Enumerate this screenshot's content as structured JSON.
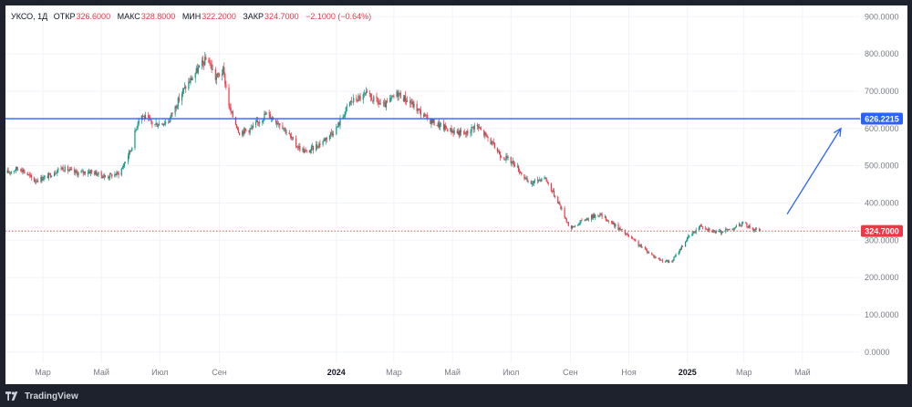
{
  "legend": {
    "symbol": "УКСО, 1Д",
    "open_label": "ОТКР",
    "open_value": "326.6000",
    "high_label": "МАКС",
    "high_value": "328.8000",
    "low_label": "МИН",
    "low_value": "322.2000",
    "close_label": "ЗАКР",
    "close_value": "324.7000",
    "change": "−2.1000 (−0.64%)"
  },
  "footer": {
    "brand": "TradingView",
    "logo_icon": "tradingview-logo-icon"
  },
  "colors": {
    "up": "#089981",
    "down": "#f23645",
    "grid": "#f0f3fa",
    "axis_text": "#787b86",
    "level_line": "#2962ff",
    "price_line": "#f23645"
  },
  "chart_data": {
    "type": "candlestick",
    "y_ticks": [
      "900.0000",
      "800.0000",
      "700.0000",
      "600.0000",
      "500.0000",
      "400.0000",
      "300.0000",
      "200.0000",
      "100.0000",
      "0.0000"
    ],
    "y_range": [
      -30,
      930
    ],
    "x_ticks": [
      {
        "label": "Мар",
        "date": "2023-03-01",
        "bold": false
      },
      {
        "label": "Май",
        "date": "2023-05-01",
        "bold": false
      },
      {
        "label": "Июл",
        "date": "2023-07-01",
        "bold": false
      },
      {
        "label": "Сен",
        "date": "2023-09-01",
        "bold": false
      },
      {
        "label": "2024",
        "date": "2024-01-01",
        "bold": true
      },
      {
        "label": "Мар",
        "date": "2024-03-01",
        "bold": false
      },
      {
        "label": "Май",
        "date": "2024-05-01",
        "bold": false
      },
      {
        "label": "Июл",
        "date": "2024-07-01",
        "bold": false
      },
      {
        "label": "Сен",
        "date": "2024-09-01",
        "bold": false
      },
      {
        "label": "Ноя",
        "date": "2024-11-01",
        "bold": false
      },
      {
        "label": "2025",
        "date": "2025-01-01",
        "bold": true
      },
      {
        "label": "Мар",
        "date": "2025-03-01",
        "bold": false
      },
      {
        "label": "Май",
        "date": "2025-05-01",
        "bold": false
      }
    ],
    "x_range": [
      "2023-01-21",
      "2025-06-30"
    ],
    "grid": true,
    "horizontal_level": {
      "value": 626.2215,
      "label": "626.2215"
    },
    "last_price": {
      "value": 324.7,
      "label": "324.7000"
    },
    "price_path": [
      [
        "2023-01-21",
        480
      ],
      [
        "2023-02-05",
        495
      ],
      [
        "2023-02-20",
        460
      ],
      [
        "2023-03-05",
        470
      ],
      [
        "2023-03-20",
        495
      ],
      [
        "2023-04-05",
        480
      ],
      [
        "2023-04-20",
        485
      ],
      [
        "2023-05-05",
        470
      ],
      [
        "2023-05-20",
        480
      ],
      [
        "2023-06-01",
        545
      ],
      [
        "2023-06-10",
        640
      ],
      [
        "2023-06-25",
        610
      ],
      [
        "2023-07-10",
        620
      ],
      [
        "2023-07-25",
        700
      ],
      [
        "2023-08-10",
        760
      ],
      [
        "2023-08-20",
        790
      ],
      [
        "2023-08-28",
        735
      ],
      [
        "2023-09-05",
        755
      ],
      [
        "2023-09-12",
        650
      ],
      [
        "2023-09-22",
        590
      ],
      [
        "2023-10-05",
        600
      ],
      [
        "2023-10-20",
        640
      ],
      [
        "2023-11-05",
        610
      ],
      [
        "2023-11-20",
        555
      ],
      [
        "2023-12-01",
        535
      ],
      [
        "2023-12-15",
        560
      ],
      [
        "2024-01-01",
        600
      ],
      [
        "2024-01-15",
        670
      ],
      [
        "2024-02-01",
        690
      ],
      [
        "2024-02-20",
        660
      ],
      [
        "2024-03-05",
        695
      ],
      [
        "2024-03-20",
        665
      ],
      [
        "2024-04-05",
        625
      ],
      [
        "2024-04-20",
        605
      ],
      [
        "2024-05-05",
        590
      ],
      [
        "2024-05-15",
        585
      ],
      [
        "2024-05-25",
        610
      ],
      [
        "2024-06-05",
        580
      ],
      [
        "2024-06-20",
        530
      ],
      [
        "2024-07-05",
        505
      ],
      [
        "2024-07-20",
        450
      ],
      [
        "2024-08-05",
        470
      ],
      [
        "2024-08-20",
        400
      ],
      [
        "2024-09-01",
        330
      ],
      [
        "2024-09-15",
        355
      ],
      [
        "2024-10-01",
        370
      ],
      [
        "2024-10-15",
        345
      ],
      [
        "2024-11-01",
        310
      ],
      [
        "2024-11-15",
        280
      ],
      [
        "2024-12-01",
        250
      ],
      [
        "2024-12-15",
        240
      ],
      [
        "2025-01-01",
        305
      ],
      [
        "2025-01-15",
        340
      ],
      [
        "2025-02-01",
        320
      ],
      [
        "2025-02-15",
        330
      ],
      [
        "2025-03-01",
        345
      ],
      [
        "2025-03-10",
        330
      ],
      [
        "2025-03-18",
        324.7
      ]
    ],
    "arrow": {
      "from": [
        "2025-04-15",
        370
      ],
      "to": [
        "2025-06-10",
        600
      ]
    }
  }
}
